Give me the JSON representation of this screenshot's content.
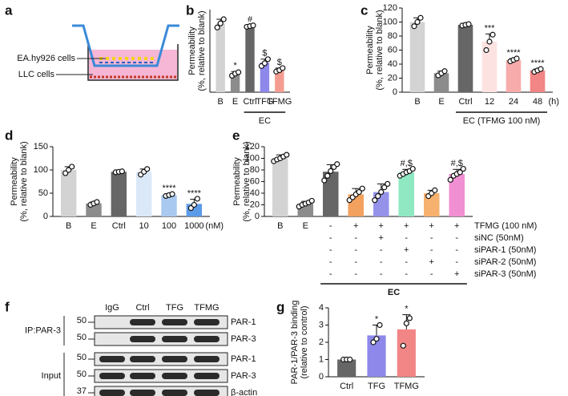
{
  "panel_a": {
    "panel": "a",
    "top_cells": "EA.hy926 cells",
    "bottom_cells": "LLC cells"
  },
  "chart_data": [
    {
      "type": "bar",
      "panel": "b",
      "ylabel": [
        "Permeability",
        "(%, relative to blank)"
      ],
      "categories": [
        "B",
        "E",
        "Ctrl",
        "TFG",
        "TFMG"
      ],
      "values": [
        100,
        27,
        96,
        43,
        32
      ],
      "errors": [
        6,
        3,
        1,
        5,
        3
      ],
      "points": [
        [
          94,
          100,
          106
        ],
        [
          24,
          27,
          29
        ],
        [
          95,
          96,
          97
        ],
        [
          38,
          42,
          48
        ],
        [
          30,
          32,
          35
        ]
      ],
      "colors": [
        "#d3d3d3",
        "#8c8c8c",
        "#666666",
        "#8d88ea",
        "#f59c90"
      ],
      "significance": [
        null,
        "*",
        "#",
        "$",
        "$"
      ],
      "group": {
        "label": "EC",
        "from": 2,
        "to": 4
      },
      "ylim": [
        0,
        120
      ]
    },
    {
      "type": "bar",
      "panel": "c",
      "ylabel": [
        "Permeability",
        "(%, relative to blank)"
      ],
      "categories": [
        "B",
        "E",
        "Ctrl",
        "12",
        "24",
        "48"
      ],
      "x_unit": "(h)",
      "values": [
        100,
        27,
        96,
        72,
        46,
        31
      ],
      "errors": [
        6,
        3,
        1,
        11,
        2,
        2
      ],
      "points": [
        [
          94,
          100,
          106
        ],
        [
          24,
          27,
          30
        ],
        [
          95,
          96,
          97
        ],
        [
          60,
          72,
          82
        ],
        [
          44,
          46,
          48
        ],
        [
          29,
          31,
          33
        ]
      ],
      "colors": [
        "#d3d3d3",
        "#8c8c8c",
        "#666666",
        "#fde2e2",
        "#f7abab",
        "#f28585"
      ],
      "significance": [
        null,
        null,
        null,
        "***",
        "****",
        "****"
      ],
      "group": {
        "label": "EC (TFMG 100 nM)",
        "from": 2,
        "to": 5
      },
      "ylim": [
        0,
        120
      ],
      "yticks": [
        0,
        20,
        40,
        60,
        80,
        100,
        120
      ]
    },
    {
      "type": "bar",
      "panel": "d",
      "ylabel": [
        "Permeability",
        "(%, relative to blank)"
      ],
      "categories": [
        "B",
        "E",
        "Ctrl",
        "10",
        "100",
        "1000"
      ],
      "x_unit": "(nM)",
      "values": [
        100,
        28,
        96,
        96,
        46,
        27
      ],
      "errors": [
        7,
        3,
        1,
        6,
        2,
        10
      ],
      "points": [
        [
          93,
          100,
          107
        ],
        [
          25,
          28,
          31
        ],
        [
          95,
          96,
          97
        ],
        [
          90,
          96,
          102
        ],
        [
          44,
          46,
          48
        ],
        [
          18,
          25,
          38
        ]
      ],
      "colors": [
        "#d3d3d3",
        "#8c8c8c",
        "#666666",
        "#dbe8f8",
        "#a9c9f1",
        "#5c9be8"
      ],
      "significance": [
        null,
        null,
        null,
        null,
        "****",
        "****"
      ],
      "ylim": [
        0,
        150
      ],
      "yticks": [
        0,
        50,
        100,
        150
      ]
    },
    {
      "type": "bar",
      "panel": "e",
      "ylabel": [
        "Permeability",
        "(%, relative to blank)"
      ],
      "categories": [
        "B",
        "E",
        null,
        null,
        null,
        null,
        null,
        null
      ],
      "values": [
        100,
        22,
        77,
        38,
        42,
        76,
        40,
        73
      ],
      "errors": [
        6,
        4,
        12,
        10,
        14,
        5,
        5,
        8
      ],
      "points": [
        [
          95,
          98,
          100,
          103,
          106
        ],
        [
          17,
          20,
          22,
          24,
          27
        ],
        [
          62,
          70,
          78,
          85,
          90
        ],
        [
          28,
          33,
          38,
          42,
          48
        ],
        [
          28,
          35,
          42,
          50,
          56
        ],
        [
          70,
          73,
          76,
          78,
          82
        ],
        [
          35,
          40,
          45
        ],
        [
          63,
          70,
          73,
          76,
          82
        ]
      ],
      "colors": [
        "#d3d3d3",
        "#8c8c8c",
        "#666666",
        "#f2a15e",
        "#9592ea",
        "#8fe8c2",
        "#f7b16e",
        "#f08fd2"
      ],
      "significance": [
        null,
        null,
        null,
        null,
        null,
        "#,$",
        null,
        "#,$"
      ],
      "conditions": [
        {
          "name": "TFMG (100 nM)",
          "marks": [
            null,
            null,
            "-",
            "+",
            "+",
            "+",
            "+",
            "+"
          ]
        },
        {
          "name": "siNC (50nM)",
          "marks": [
            null,
            null,
            "-",
            "-",
            "+",
            "-",
            "-",
            "-"
          ]
        },
        {
          "name": "siPAR-1 (50nM)",
          "marks": [
            null,
            null,
            "-",
            "-",
            "-",
            "+",
            "-",
            "-"
          ]
        },
        {
          "name": "siPAR-2 (50nM)",
          "marks": [
            null,
            null,
            "-",
            "-",
            "-",
            "-",
            "+",
            "-"
          ]
        },
        {
          "name": "siPAR-3 (50nM)",
          "marks": [
            null,
            null,
            "-",
            "-",
            "-",
            "-",
            "-",
            "+"
          ]
        }
      ],
      "group": {
        "label": "EC",
        "from": 2,
        "to": 7
      },
      "ylim": [
        0,
        120
      ],
      "yticks": [
        0,
        20,
        40,
        60,
        80,
        100,
        120
      ]
    },
    {
      "type": "bar",
      "panel": "g",
      "ylabel": [
        "PAR-1/PAR-3 binding",
        "(relative to control)"
      ],
      "categories": [
        "Ctrl",
        "TFG",
        "TFMG"
      ],
      "values": [
        1,
        2.4,
        2.75
      ],
      "errors": [
        0.02,
        0.6,
        0.85
      ],
      "points": [
        [
          1,
          1,
          1
        ],
        [
          2,
          2.2,
          3
        ],
        [
          1.8,
          3.1,
          3.4
        ]
      ],
      "colors": [
        "#666666",
        "#8d88ea",
        "#f28585"
      ],
      "significance": [
        null,
        "*",
        "*"
      ],
      "ylim": [
        0,
        4
      ],
      "yticks": [
        0,
        1,
        2,
        3,
        4
      ]
    }
  ],
  "panel_f": {
    "panel": "f",
    "lanes": [
      "IgG",
      "Ctrl",
      "TFG",
      "TFMG"
    ],
    "groups": [
      {
        "name": "IP:PAR-3",
        "rows": [
          {
            "mw": 50,
            "protein": "PAR-1"
          },
          {
            "mw": 50,
            "protein": "PAR-3"
          }
        ]
      },
      {
        "name": "Input",
        "rows": [
          {
            "mw": 50,
            "protein": "PAR-1"
          },
          {
            "mw": 50,
            "protein": "PAR-3"
          },
          {
            "mw": 37,
            "protein": "β-actin"
          }
        ]
      }
    ]
  }
}
